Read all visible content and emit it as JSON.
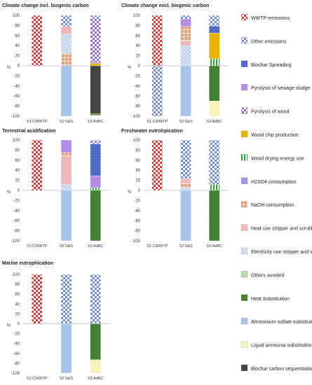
{
  "colors": {
    "wwtp_red": "#d93a3a",
    "other_emis_blue": "#6f8ed6",
    "biochar_spread": "#4a67c4",
    "pyro_sludge": "#b48ee6",
    "pyro_wood": "#9a6ad6",
    "wood_chip": "#e6b400",
    "wood_drying": "#2e9a3a",
    "h2so4": "#a793e8",
    "naoh": "#e3a07a",
    "heat_stripper": "#f0b8b8",
    "elec_stripper": "#c3d3ef",
    "others_avoided": "#b5dca9",
    "heat_subst": "#3d7a2a",
    "ammonium_sulfate": "#a7c3ea",
    "liquid_ammonia": "#f8f4b8",
    "biochar_seq": "#444444"
  },
  "legend": [
    {
      "key": "wwtp",
      "label": "WWTP emissions"
    },
    {
      "key": "other_emis",
      "label": "Other emissions"
    },
    {
      "key": "biochar_spread",
      "label": "Biochar Spreading"
    },
    {
      "key": "pyro_sludge",
      "label": "Pyrolysis of sewage sludge"
    },
    {
      "key": "pyro_wood",
      "label": "Pyrolysis of wood"
    },
    {
      "key": "wood_chip",
      "label": "Wood chip production"
    },
    {
      "key": "wood_drying",
      "label": "Wood drying energy use"
    },
    {
      "key": "h2so4",
      "label": "H2SO4 consumption"
    },
    {
      "key": "naoh",
      "label": "NaOH consumption"
    },
    {
      "key": "heat_stripper",
      "label": "Heat use stripper and scrubber"
    },
    {
      "key": "elec_stripper",
      "label": "Electricity use stripper and scrubber"
    },
    {
      "key": "others_avoided",
      "label": "Others avoided"
    },
    {
      "key": "heat_subst",
      "label": "Heat Substituition"
    },
    {
      "key": "ammonium_sulfate",
      "label": "Ammonium sulfate substituition"
    },
    {
      "key": "liquid_ammonia",
      "label": "Liquid ammonia substituition"
    },
    {
      "key": "biochar_seq",
      "label": "Biochar carbon sequestration"
    }
  ],
  "chart_data": [
    {
      "type": "bar",
      "stacked": true,
      "title": "Climate change incl. biogenic carbon",
      "ylabel": "%",
      "ylim": [
        -100,
        100
      ],
      "yticks": [
        -100,
        -80,
        -60,
        -40,
        -20,
        0,
        20,
        40,
        60,
        80,
        100
      ],
      "categories": [
        "S1:CWWTP",
        "S2:S&S",
        "S3:AdBC"
      ],
      "stacks": [
        {
          "pos": [
            [
              "wwtp",
              100
            ]
          ],
          "neg": []
        },
        {
          "pos": [
            [
              "naoh",
              25
            ],
            [
              "elec_stripper",
              38
            ],
            [
              "heat_stripper",
              15
            ],
            [
              "other_emis",
              22
            ]
          ],
          "neg": [
            [
              "ammonium_sulfate",
              -100
            ]
          ]
        },
        {
          "pos": [
            [
              "wood_chip",
              5
            ],
            [
              "pyro_sludge",
              3
            ],
            [
              "pyro_wood",
              87
            ],
            [
              "other_emis",
              5
            ]
          ],
          "neg": [
            [
              "biochar_seq",
              -95
            ],
            [
              "heat_subst",
              -3
            ]
          ]
        }
      ]
    },
    {
      "type": "bar",
      "stacked": true,
      "title": "Climate change excl. biogenic carbon",
      "ylabel": "%",
      "ylim": [
        -100,
        100
      ],
      "yticks": [
        -100,
        -80,
        -60,
        -40,
        -20,
        0,
        20,
        40,
        60,
        80,
        100
      ],
      "categories": [
        "S1:CWWTP",
        "S2:S&S",
        "S3:AdBC"
      ],
      "stacks": [
        {
          "pos": [
            [
              "wwtp",
              100
            ]
          ],
          "neg": [
            [
              "other_emis",
              -100
            ]
          ]
        },
        {
          "pos": [
            [
              "elec_stripper",
              40
            ],
            [
              "heat_stripper",
              10
            ],
            [
              "naoh",
              28
            ],
            [
              "pyro_sludge",
              15
            ],
            [
              "other_emis",
              7
            ]
          ],
          "neg": [
            [
              "ammonium_sulfate",
              -100
            ]
          ]
        },
        {
          "pos": [
            [
              "wood_drying",
              14
            ],
            [
              "wood_chip",
              51
            ],
            [
              "biochar_spread",
              14
            ],
            [
              "other_emis",
              21
            ]
          ],
          "neg": [
            [
              "heat_subst",
              -70
            ],
            [
              "liquid_ammonia",
              -30
            ]
          ]
        }
      ]
    },
    {
      "type": "bar",
      "stacked": true,
      "title": "Terrestrial acidification",
      "ylabel": "%",
      "ylim": [
        -100,
        100
      ],
      "yticks": [
        -100,
        -80,
        -60,
        -40,
        -20,
        0,
        20,
        40,
        60,
        80,
        100
      ],
      "categories": [
        "S1:CWWTP",
        "S2:S&S",
        "S3:AdBC"
      ],
      "stacks": [
        {
          "pos": [
            [
              "wwtp",
              100
            ]
          ],
          "neg": []
        },
        {
          "pos": [
            [
              "elec_stripper",
              12
            ],
            [
              "heat_stripper",
              55
            ],
            [
              "naoh",
              8
            ],
            [
              "pyro_sludge",
              25
            ]
          ],
          "neg": [
            [
              "ammonium_sulfate",
              -100
            ]
          ]
        },
        {
          "pos": [
            [
              "wood_drying",
              5
            ],
            [
              "pyro_sludge",
              24
            ],
            [
              "biochar_spread",
              63
            ],
            [
              "other_emis",
              8
            ]
          ],
          "neg": [
            [
              "heat_subst",
              -100
            ]
          ]
        }
      ]
    },
    {
      "type": "bar",
      "stacked": true,
      "title": "Freshwater eutrohpication",
      "ylabel": "%",
      "ylim": [
        -100,
        100
      ],
      "yticks": [
        -100,
        -80,
        -60,
        -40,
        -20,
        0,
        20,
        40,
        60,
        80,
        100
      ],
      "categories": [
        "S1:CWWTP",
        "S2:S&S",
        "S3:AdBC"
      ],
      "stacks": [
        {
          "pos": [
            [
              "wwtp",
              100
            ]
          ],
          "neg": []
        },
        {
          "pos": [
            [
              "elec_stripper",
              5
            ],
            [
              "naoh",
              10
            ],
            [
              "heat_stripper",
              8
            ],
            [
              "other_emis",
              77
            ]
          ],
          "neg": [
            [
              "ammonium_sulfate",
              -100
            ]
          ]
        },
        {
          "pos": [
            [
              "wood_drying",
              12
            ],
            [
              "other_emis",
              88
            ]
          ],
          "neg": [
            [
              "heat_subst",
              -100
            ]
          ]
        }
      ]
    },
    {
      "type": "bar",
      "stacked": true,
      "title": "Marine eutrophication",
      "ylabel": "%",
      "ylim": [
        -100,
        100
      ],
      "yticks": [
        -100,
        -80,
        -60,
        -40,
        -20,
        0,
        20,
        40,
        60,
        80,
        100
      ],
      "categories": [
        "S1:CWWTP",
        "S2:S&S",
        "S3:AdBC"
      ],
      "stacks": [
        {
          "pos": [
            [
              "wwtp",
              100
            ]
          ],
          "neg": []
        },
        {
          "pos": [
            [
              "other_emis",
              100
            ]
          ],
          "neg": [
            [
              "ammonium_sulfate",
              -100
            ]
          ]
        },
        {
          "pos": [
            [
              "other_emis",
              100
            ]
          ],
          "neg": [
            [
              "heat_subst",
              -73
            ],
            [
              "liquid_ammonia",
              -27
            ]
          ]
        }
      ]
    }
  ]
}
